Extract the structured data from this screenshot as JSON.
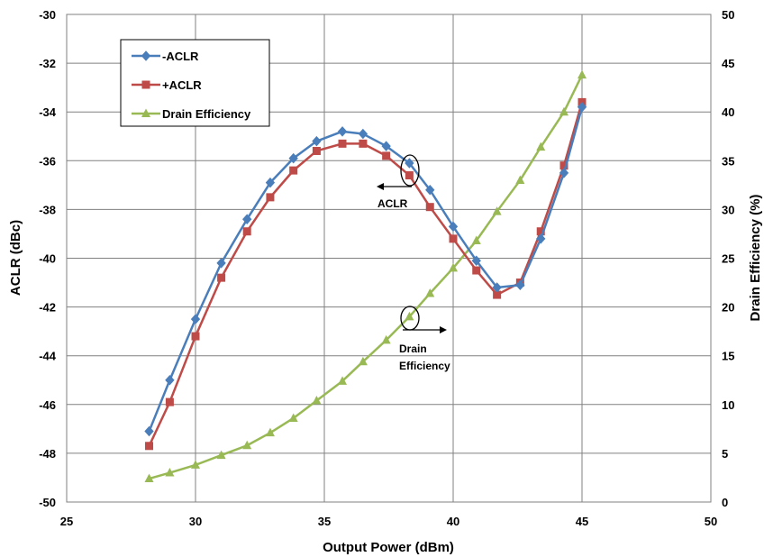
{
  "chart_data": {
    "type": "line",
    "title": "",
    "xlabel": "Output Power (dBm)",
    "ylabel": "ACLR (dBc)",
    "y2label": "Drain Efficiency (%)",
    "xlim": [
      25,
      50
    ],
    "ylim": [
      -50,
      -30
    ],
    "y2lim": [
      0,
      50
    ],
    "x_ticks": [
      "25",
      "30",
      "35",
      "40",
      "45",
      "50"
    ],
    "y_ticks": [
      "-50",
      "-48",
      "-46",
      "-44",
      "-42",
      "-40",
      "-38",
      "-36",
      "-34",
      "-32",
      "-30"
    ],
    "y2_ticks": [
      "0",
      "5",
      "10",
      "15",
      "20",
      "25",
      "30",
      "35",
      "40",
      "45",
      "50"
    ],
    "grid": true,
    "legend_position": "top-left",
    "series": [
      {
        "name": "-ACLR",
        "axis": "left",
        "color": "#4a7ebb",
        "marker": "diamond",
        "x": [
          28.2,
          29.0,
          30.0,
          31.0,
          32.0,
          32.9,
          33.8,
          34.7,
          35.7,
          36.5,
          37.4,
          38.3,
          39.1,
          40.0,
          40.9,
          41.7,
          42.6,
          43.4,
          44.3,
          45.0
        ],
        "y": [
          -47.1,
          -45.0,
          -42.5,
          -40.2,
          -38.4,
          -36.9,
          -35.9,
          -35.2,
          -34.8,
          -34.9,
          -35.4,
          -36.1,
          -37.2,
          -38.7,
          -40.1,
          -41.2,
          -41.1,
          -39.2,
          -36.5,
          -33.8
        ]
      },
      {
        "name": "+ACLR",
        "axis": "left",
        "color": "#be4b48",
        "marker": "square",
        "x": [
          28.2,
          29.0,
          30.0,
          31.0,
          32.0,
          32.9,
          33.8,
          34.7,
          35.7,
          36.5,
          37.4,
          38.3,
          39.1,
          40.0,
          40.9,
          41.7,
          42.6,
          43.4,
          44.3,
          45.0
        ],
        "y": [
          -47.7,
          -45.9,
          -43.2,
          -40.8,
          -38.9,
          -37.5,
          -36.4,
          -35.6,
          -35.3,
          -35.3,
          -35.8,
          -36.6,
          -37.9,
          -39.2,
          -40.5,
          -41.5,
          -41.0,
          -38.9,
          -36.2,
          -33.6
        ]
      },
      {
        "name": "Drain Efficiency",
        "axis": "right",
        "color": "#98b954",
        "marker": "triangle",
        "x": [
          28.2,
          29.0,
          30.0,
          31.0,
          32.0,
          32.9,
          33.8,
          34.7,
          35.7,
          36.5,
          37.4,
          38.3,
          39.1,
          40.0,
          40.9,
          41.7,
          42.6,
          43.4,
          44.3,
          45.0
        ],
        "y": [
          2.4,
          3.0,
          3.8,
          4.8,
          5.8,
          7.1,
          8.6,
          10.4,
          12.4,
          14.4,
          16.6,
          19.0,
          21.4,
          24.0,
          26.8,
          29.8,
          33.0,
          36.4,
          40.0,
          43.8
        ]
      }
    ],
    "annotations": [
      {
        "text": "ACLR"
      },
      {
        "text": "Drain",
        "text2": "Efficiency"
      }
    ]
  }
}
